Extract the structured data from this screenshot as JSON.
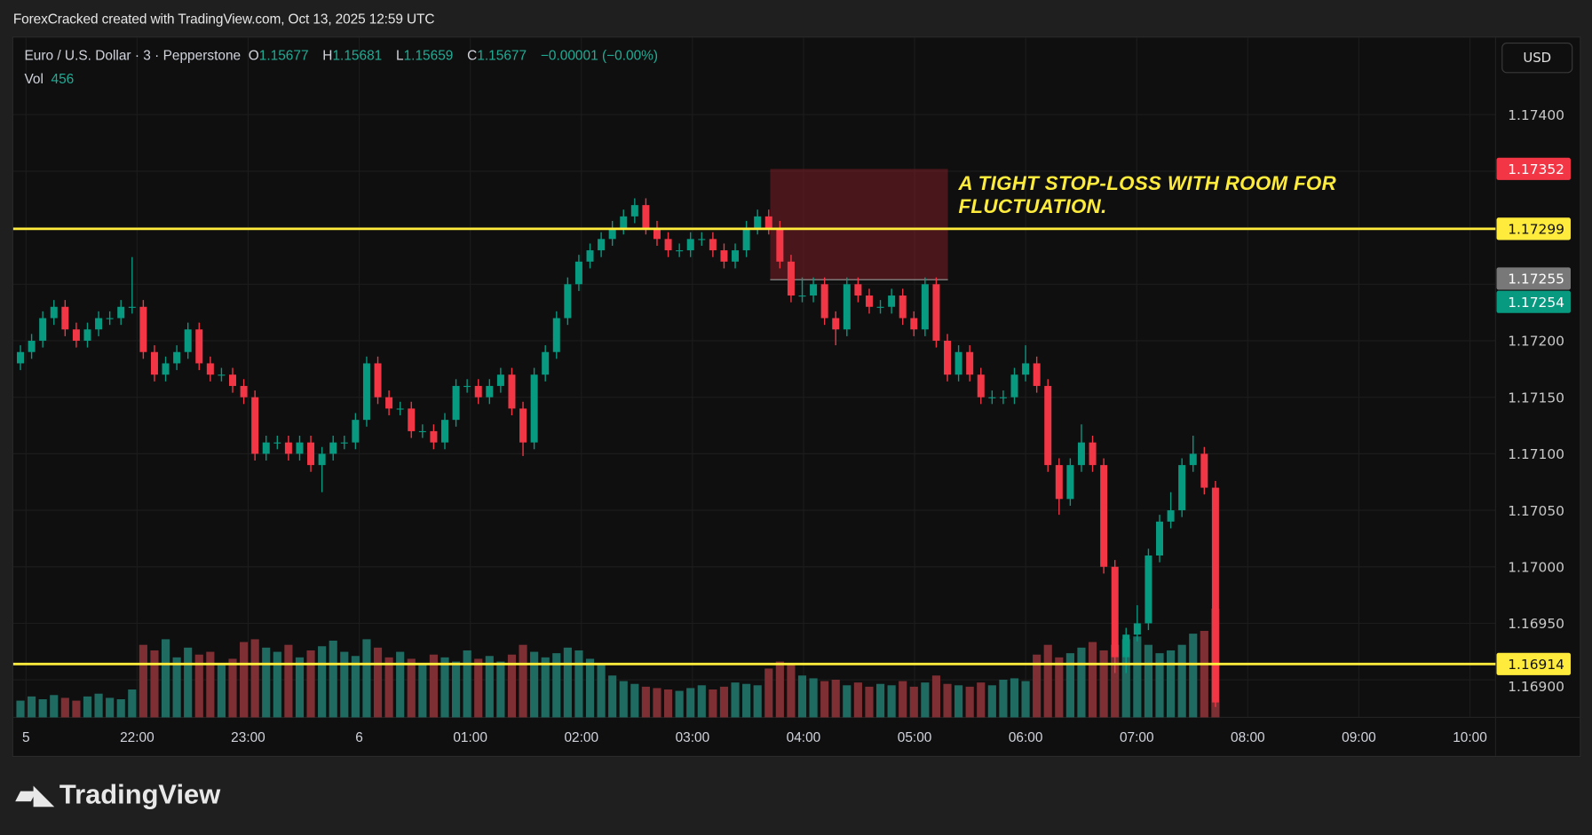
{
  "header": {
    "title": "ForexCracked created with TradingView.com, Oct 13, 2025 12:59 UTC"
  },
  "legend": {
    "symbol": "Euro / U.S. Dollar · 3 · Pepperstone",
    "open_label": "O",
    "open": "1.15677",
    "high_label": "H",
    "high": "1.15681",
    "low_label": "L",
    "low": "1.15659",
    "close_label": "C",
    "close": "1.15677",
    "change": "−0.00001 (−0.00%)",
    "vol_label": "Vol",
    "vol": "456"
  },
  "currency_button": "USD",
  "annotation": {
    "line1": "A TIGHT STOP-LOSS WITH ROOM FOR",
    "line2": "FLUCTUATION."
  },
  "logo": {
    "text": "TradingView"
  },
  "colors": {
    "up": "#089981",
    "down": "#f23645",
    "vol_up": "#1f6b62",
    "vol_down": "#7d2f33",
    "level": "#ffeb3b",
    "zone": "rgba(120,30,38,0.55)"
  },
  "chart_data": {
    "type": "candlestick",
    "price_ticks": [
      "1.17400",
      "1.17200",
      "1.17150",
      "1.17100",
      "1.17050",
      "1.17000",
      "1.16950",
      "1.16900"
    ],
    "ylim": [
      1.1686,
      1.1743
    ],
    "time_ticks": [
      "5",
      "22:00",
      "23:00",
      "6",
      "01:00",
      "02:00",
      "03:00",
      "04:00",
      "05:00",
      "06:00",
      "07:00",
      "08:00",
      "09:00",
      "10:00"
    ],
    "open": [
      1.1718,
      1.1719,
      1.172,
      1.1722,
      1.1723,
      1.1721,
      1.172,
      1.1721,
      1.1722,
      1.1722,
      1.1723,
      1.1723,
      1.1719,
      1.1717,
      1.1718,
      1.1719,
      1.1721,
      1.1718,
      1.1717,
      1.1717,
      1.1716,
      1.1715,
      1.171,
      1.1711,
      1.1711,
      1.171,
      1.1711,
      1.1709,
      1.171,
      1.1711,
      1.1711,
      1.1713,
      1.1718,
      1.1715,
      1.1714,
      1.1714,
      1.1712,
      1.1712,
      1.1711,
      1.1713,
      1.1716,
      1.1716,
      1.1715,
      1.1716,
      1.1717,
      1.1714,
      1.1711,
      1.1717,
      1.1719,
      1.1722,
      1.1725,
      1.1727,
      1.1728,
      1.1729,
      1.173,
      1.1731,
      1.1732,
      1.173,
      1.1729,
      1.1728,
      1.1728,
      1.1729,
      1.1729,
      1.1728,
      1.1727,
      1.1728,
      1.173,
      1.1731,
      1.173,
      1.1727,
      1.1724,
      1.1724,
      1.1725,
      1.1722,
      1.1721,
      1.1725,
      1.1724,
      1.1723,
      1.1723,
      1.1724,
      1.1722,
      1.1721,
      1.1725,
      1.172,
      1.1717,
      1.1719,
      1.1717,
      1.1715,
      1.1715,
      1.1715,
      1.1717,
      1.1718,
      1.1716,
      1.1709,
      1.1706,
      1.1709,
      1.1711,
      1.1709,
      1.17,
      1.1692,
      1.1694,
      1.1695,
      1.1701,
      1.1704,
      1.1705,
      1.1709,
      1.171,
      1.1707
    ],
    "high": [
      1.17196,
      1.17206,
      1.17226,
      1.17236,
      1.17236,
      1.17216,
      1.17216,
      1.17226,
      1.17226,
      1.17236,
      1.17274,
      1.17236,
      1.17196,
      1.17186,
      1.17196,
      1.17216,
      1.17216,
      1.17186,
      1.17176,
      1.17176,
      1.17166,
      1.17156,
      1.17116,
      1.17116,
      1.17116,
      1.17116,
      1.17116,
      1.17106,
      1.17116,
      1.17116,
      1.17136,
      1.17186,
      1.17186,
      1.17156,
      1.17146,
      1.17146,
      1.17126,
      1.17126,
      1.17136,
      1.17166,
      1.17166,
      1.17166,
      1.17166,
      1.17176,
      1.17176,
      1.17146,
      1.17176,
      1.17196,
      1.17226,
      1.17256,
      1.17276,
      1.17286,
      1.17296,
      1.17306,
      1.17316,
      1.17326,
      1.17326,
      1.17306,
      1.17296,
      1.17286,
      1.17296,
      1.17296,
      1.17296,
      1.17286,
      1.17286,
      1.17306,
      1.17316,
      1.17316,
      1.17306,
      1.17276,
      1.17256,
      1.17256,
      1.17256,
      1.17226,
      1.17256,
      1.17256,
      1.17246,
      1.17236,
      1.17246,
      1.17246,
      1.17226,
      1.17256,
      1.17256,
      1.17206,
      1.17196,
      1.17196,
      1.17176,
      1.17156,
      1.17156,
      1.17176,
      1.17196,
      1.17186,
      1.17166,
      1.17096,
      1.17096,
      1.17126,
      1.17116,
      1.17096,
      1.17006,
      1.16946,
      1.16966,
      1.17016,
      1.17046,
      1.17066,
      1.17096,
      1.17116,
      1.17106,
      1.17076
    ],
    "low": [
      1.17174,
      1.17184,
      1.17194,
      1.17214,
      1.17204,
      1.17194,
      1.17194,
      1.17204,
      1.17214,
      1.17214,
      1.17224,
      1.17184,
      1.17164,
      1.17164,
      1.17174,
      1.17184,
      1.17174,
      1.17164,
      1.17164,
      1.17154,
      1.17144,
      1.17094,
      1.17094,
      1.17104,
      1.17094,
      1.17094,
      1.17084,
      1.17066,
      1.17094,
      1.17104,
      1.17104,
      1.17124,
      1.17144,
      1.17134,
      1.17134,
      1.17114,
      1.17114,
      1.17104,
      1.17104,
      1.17124,
      1.17154,
      1.17144,
      1.17144,
      1.17154,
      1.17134,
      1.17098,
      1.17104,
      1.17164,
      1.17184,
      1.17214,
      1.17244,
      1.17264,
      1.17274,
      1.17284,
      1.17294,
      1.17304,
      1.17294,
      1.17284,
      1.17274,
      1.17274,
      1.17274,
      1.17284,
      1.17274,
      1.17264,
      1.17264,
      1.17274,
      1.17294,
      1.17294,
      1.17264,
      1.17234,
      1.17234,
      1.17234,
      1.17214,
      1.17196,
      1.17204,
      1.17234,
      1.17224,
      1.17224,
      1.17224,
      1.17214,
      1.17204,
      1.17204,
      1.17194,
      1.17164,
      1.17164,
      1.17164,
      1.17144,
      1.17144,
      1.17144,
      1.17144,
      1.17164,
      1.17154,
      1.17084,
      1.17046,
      1.17054,
      1.17084,
      1.17084,
      1.16994,
      1.16906,
      1.16906,
      1.16934,
      1.16944,
      1.17004,
      1.17034,
      1.17044,
      1.17084,
      1.17064,
      1.16876
    ],
    "close": [
      1.1719,
      1.172,
      1.1722,
      1.1723,
      1.1721,
      1.172,
      1.1721,
      1.1722,
      1.1722,
      1.1723,
      1.1723,
      1.1719,
      1.1717,
      1.1718,
      1.1719,
      1.1721,
      1.1718,
      1.1717,
      1.1717,
      1.1716,
      1.1715,
      1.171,
      1.1711,
      1.1711,
      1.171,
      1.1711,
      1.1709,
      1.171,
      1.1711,
      1.1711,
      1.1713,
      1.1718,
      1.1715,
      1.1714,
      1.1714,
      1.1712,
      1.1712,
      1.1711,
      1.1713,
      1.1716,
      1.1716,
      1.1715,
      1.1716,
      1.1717,
      1.1714,
      1.1711,
      1.1717,
      1.1719,
      1.1722,
      1.1725,
      1.1727,
      1.1728,
      1.1729,
      1.173,
      1.1731,
      1.1732,
      1.173,
      1.1729,
      1.1728,
      1.1728,
      1.1729,
      1.1729,
      1.1728,
      1.1727,
      1.1728,
      1.173,
      1.1731,
      1.173,
      1.1727,
      1.1724,
      1.1724,
      1.1725,
      1.1722,
      1.1721,
      1.1725,
      1.1724,
      1.1723,
      1.1723,
      1.1724,
      1.1722,
      1.1721,
      1.1725,
      1.172,
      1.1717,
      1.1719,
      1.1717,
      1.1715,
      1.1715,
      1.1715,
      1.1717,
      1.1718,
      1.1716,
      1.1709,
      1.1706,
      1.1709,
      1.1711,
      1.1709,
      1.17,
      1.1692,
      1.1694,
      1.1695,
      1.1701,
      1.1704,
      1.1705,
      1.1709,
      1.171,
      1.1707,
      1.1688
    ],
    "volume": [
      120,
      150,
      130,
      160,
      140,
      120,
      150,
      170,
      140,
      130,
      200,
      520,
      480,
      560,
      430,
      500,
      450,
      470,
      380,
      420,
      540,
      560,
      500,
      470,
      520,
      430,
      480,
      510,
      550,
      470,
      440,
      560,
      500,
      430,
      470,
      420,
      390,
      450,
      430,
      400,
      480,
      420,
      440,
      400,
      450,
      520,
      470,
      430,
      460,
      500,
      480,
      420,
      380,
      300,
      260,
      240,
      220,
      210,
      200,
      190,
      210,
      230,
      200,
      220,
      250,
      240,
      230,
      350,
      400,
      380,
      300,
      280,
      260,
      270,
      230,
      250,
      220,
      240,
      230,
      260,
      220,
      250,
      300,
      240,
      230,
      220,
      250,
      230,
      270,
      280,
      260,
      450,
      520,
      430,
      460,
      500,
      540,
      480,
      520,
      560,
      580,
      520,
      460,
      480,
      520,
      600,
      620,
      780
    ],
    "horizontal_levels": [
      {
        "price": "1.17299"
      },
      {
        "price": "1.16914"
      }
    ],
    "zone": {
      "top": 1.17352,
      "bottom": 1.17254,
      "from": "03:42",
      "to": "05:18"
    },
    "price_labels": [
      {
        "text": "1.17352",
        "price": 1.17352,
        "color": "#f23645",
        "fg": "#ffffff"
      },
      {
        "text": "1.17299",
        "price": 1.17299,
        "color": "#ffeb3b",
        "fg": "#111111"
      },
      {
        "text": "1.17255",
        "price": 1.17255,
        "color": "#787878",
        "fg": "#ffffff"
      },
      {
        "text": "1.17254",
        "price": 1.17254,
        "color": "#089981",
        "fg": "#ffffff"
      },
      {
        "text": "1.16914",
        "price": 1.16914,
        "color": "#ffeb3b",
        "fg": "#111111"
      }
    ]
  }
}
